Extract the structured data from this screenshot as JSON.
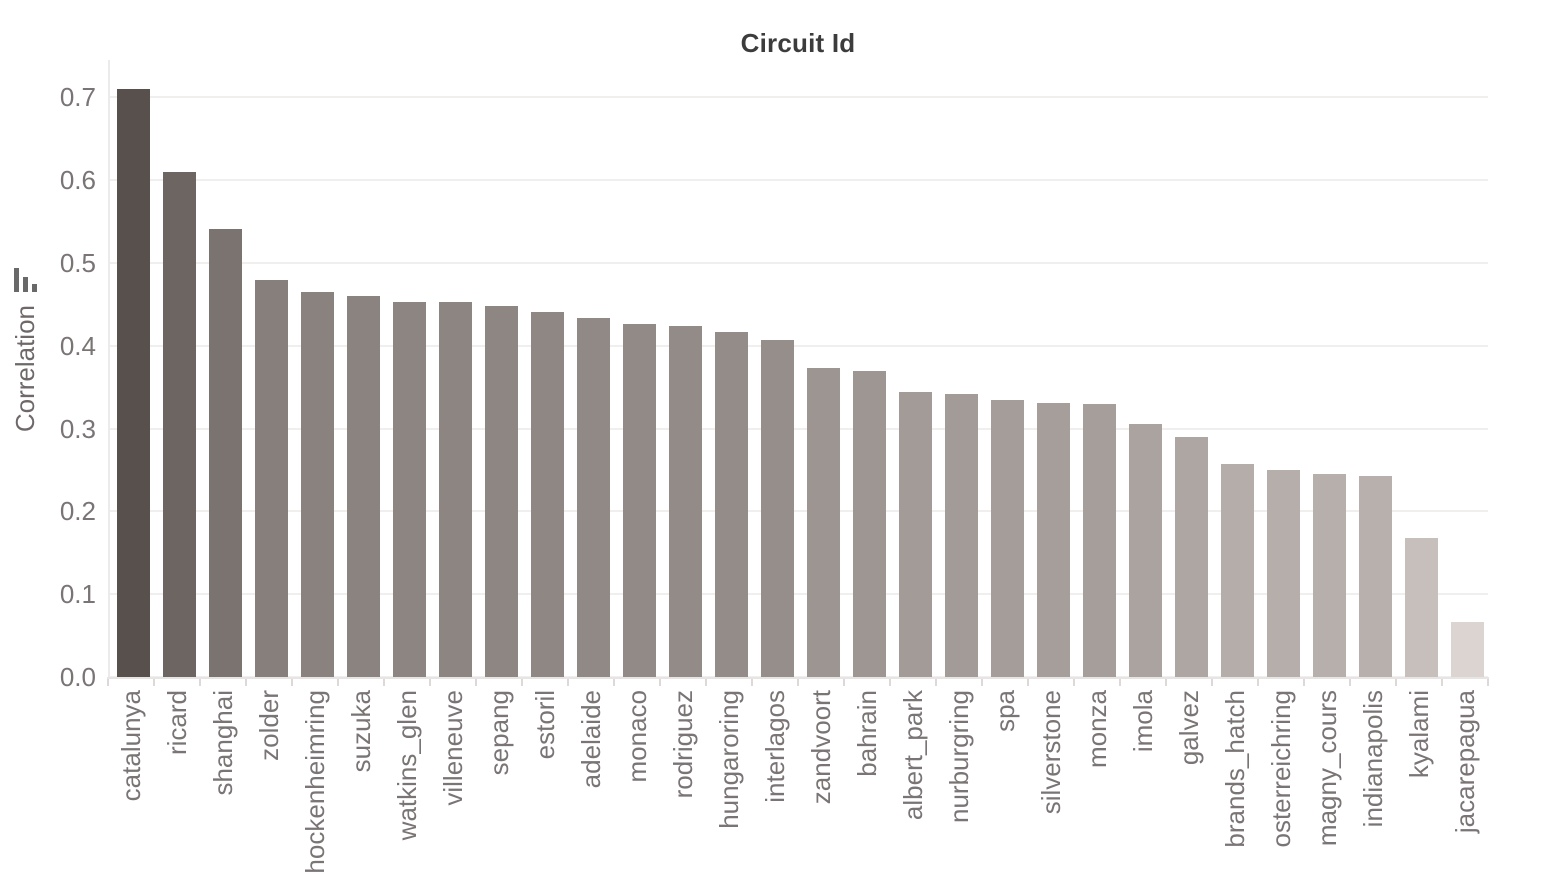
{
  "chart_data": {
    "type": "bar",
    "title": "Circuit Id",
    "xlabel": "",
    "ylabel": "Correlation",
    "legend": "none",
    "grid": "horizontal",
    "x_tick_label_rotation": 90,
    "categories": [
      "catalunya",
      "ricard",
      "shanghai",
      "zolder",
      "hockenheimring",
      "suzuka",
      "watkins_glen",
      "villeneuve",
      "sepang",
      "estoril",
      "adelaide",
      "monaco",
      "rodriguez",
      "hungaroring",
      "interlagos",
      "zandvoort",
      "bahrain",
      "albert_park",
      "nurburgring",
      "spa",
      "silverstone",
      "monza",
      "imola",
      "galvez",
      "brands_hatch",
      "osterreichring",
      "magny_cours",
      "indianapolis",
      "kyalami",
      "jacarepagua"
    ],
    "values": [
      0.71,
      0.61,
      0.541,
      0.479,
      0.465,
      0.46,
      0.453,
      0.453,
      0.448,
      0.441,
      0.434,
      0.426,
      0.424,
      0.417,
      0.407,
      0.373,
      0.37,
      0.344,
      0.342,
      0.334,
      0.331,
      0.33,
      0.305,
      0.29,
      0.257,
      0.25,
      0.245,
      0.243,
      0.168,
      0.066
    ],
    "bar_colors": [
      "#57504C",
      "#6C6561",
      "#7A736F",
      "#867F7B",
      "#89827E",
      "#8A837F",
      "#8C8581",
      "#8C8581",
      "#8D8682",
      "#8E8783",
      "#908985",
      "#918A86",
      "#928B87",
      "#938C88",
      "#958E8A",
      "#9C9591",
      "#9D9692",
      "#A29B97",
      "#A29B97",
      "#A49D99",
      "#A59E9A",
      "#A59E9A",
      "#AAA39F",
      "#ADA6A2",
      "#B4ADA9",
      "#B5AEAA",
      "#B6AFAB",
      "#B7B0AC",
      "#C6BFBB",
      "#DBD4D0"
    ],
    "yticks": [
      0.0,
      0.1,
      0.2,
      0.3,
      0.4,
      0.5,
      0.6,
      0.7
    ],
    "ylim": [
      0,
      0.745
    ],
    "colors": {
      "title": "#3c3c3c",
      "tick_label": "#7a7474",
      "axis_label": "#6e6868",
      "gridline": "#f1efee",
      "axis_line": "#e7e4e3",
      "boundary_tick": "#ddd9d8",
      "icon": "#696969",
      "background": "#ffffff"
    }
  }
}
